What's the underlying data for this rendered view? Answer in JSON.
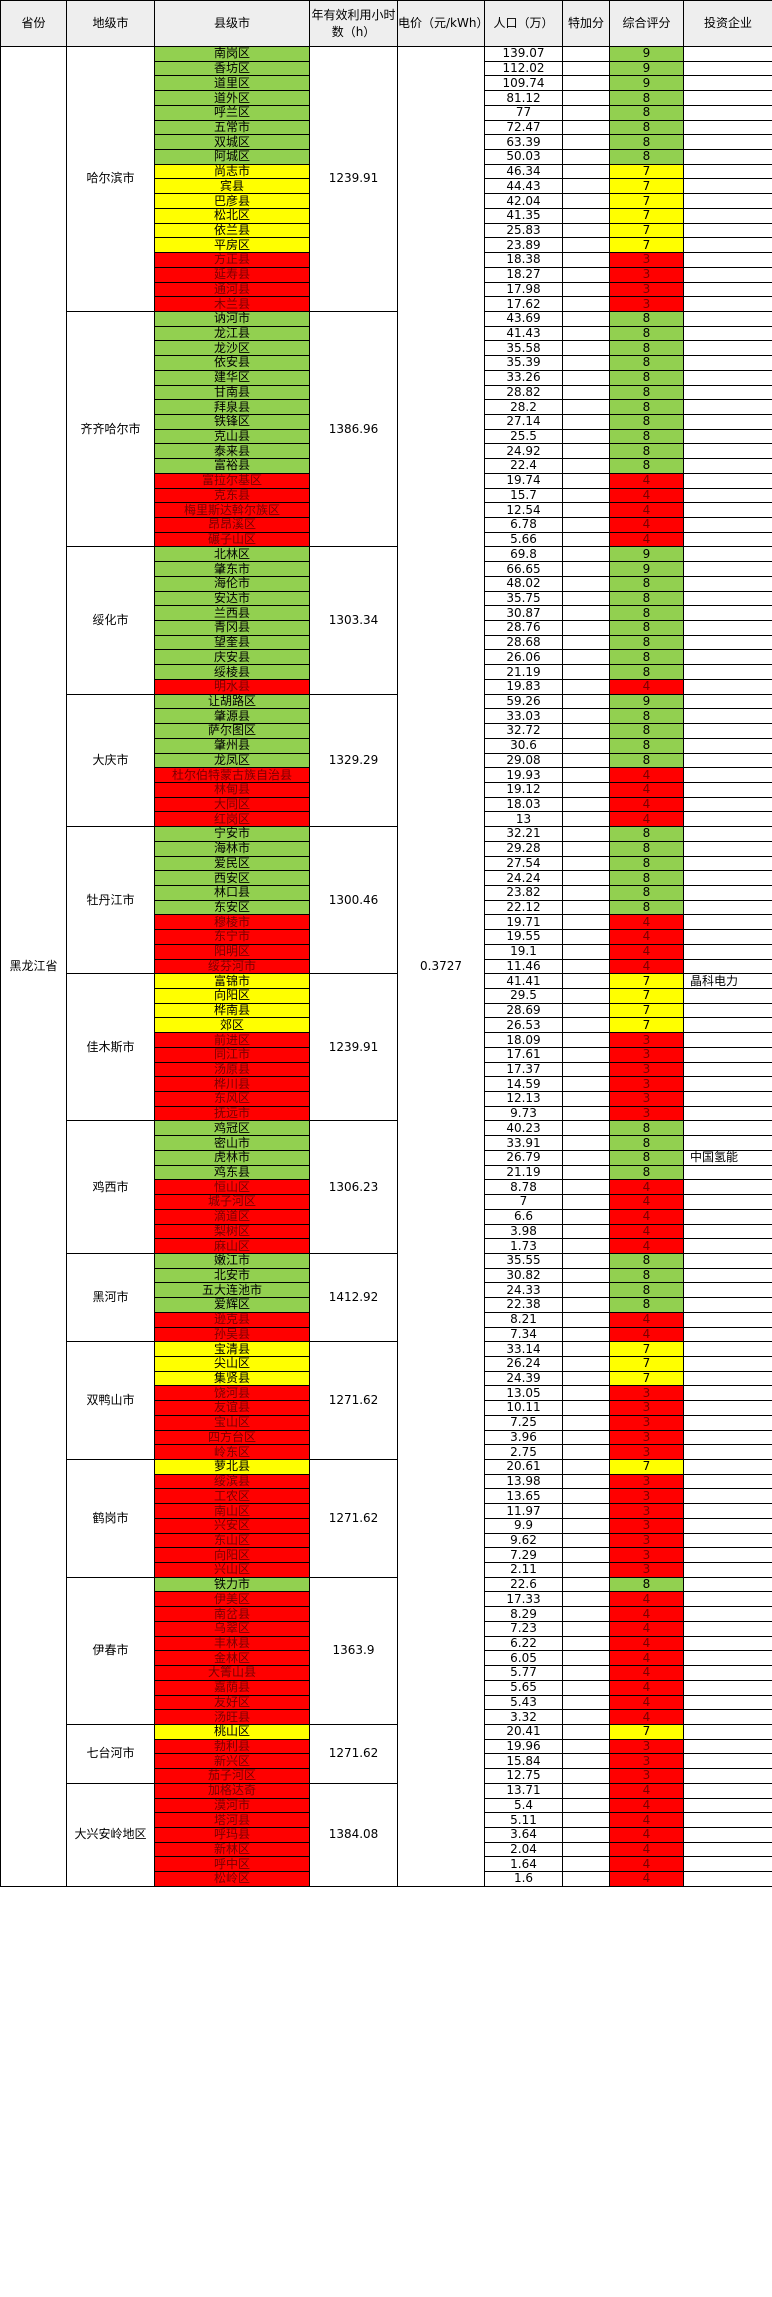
{
  "headers": {
    "province": "省份",
    "city": "地级市",
    "county": "县级市",
    "hours": "年有效利用小时数（h）",
    "price": "电价（元/kWh）",
    "population": "人口（万）",
    "bonus": "特加分",
    "score": "综合评分",
    "investor": "投资企业"
  },
  "province": "黑龙江省",
  "price": "0.3727",
  "color_codes": {
    "g": "#92d050",
    "y": "#ffff00",
    "r": "#ff0000"
  },
  "cities": [
    {
      "name": "哈尔滨市",
      "hours": "1239.91",
      "rows": [
        {
          "county": "南岗区",
          "pop": "139.07",
          "score": "9",
          "color": "g",
          "investor": ""
        },
        {
          "county": "香坊区",
          "pop": "112.02",
          "score": "9",
          "color": "g",
          "investor": ""
        },
        {
          "county": "道里区",
          "pop": "109.74",
          "score": "9",
          "color": "g",
          "investor": ""
        },
        {
          "county": "道外区",
          "pop": "81.12",
          "score": "8",
          "color": "g",
          "investor": ""
        },
        {
          "county": "呼兰区",
          "pop": "77",
          "score": "8",
          "color": "g",
          "investor": ""
        },
        {
          "county": "五常市",
          "pop": "72.47",
          "score": "8",
          "color": "g",
          "investor": ""
        },
        {
          "county": "双城区",
          "pop": "63.39",
          "score": "8",
          "color": "g",
          "investor": ""
        },
        {
          "county": "阿城区",
          "pop": "50.03",
          "score": "8",
          "color": "g",
          "investor": ""
        },
        {
          "county": "尚志市",
          "pop": "46.34",
          "score": "7",
          "color": "y",
          "investor": ""
        },
        {
          "county": "宾县",
          "pop": "44.43",
          "score": "7",
          "color": "y",
          "investor": ""
        },
        {
          "county": "巴彦县",
          "pop": "42.04",
          "score": "7",
          "color": "y",
          "investor": ""
        },
        {
          "county": "松北区",
          "pop": "41.35",
          "score": "7",
          "color": "y",
          "investor": ""
        },
        {
          "county": "依兰县",
          "pop": "25.83",
          "score": "7",
          "color": "y",
          "investor": ""
        },
        {
          "county": "平房区",
          "pop": "23.89",
          "score": "7",
          "color": "y",
          "investor": ""
        },
        {
          "county": "方正县",
          "pop": "18.38",
          "score": "3",
          "color": "r",
          "investor": ""
        },
        {
          "county": "延寿县",
          "pop": "18.27",
          "score": "3",
          "color": "r",
          "investor": ""
        },
        {
          "county": "通河县",
          "pop": "17.98",
          "score": "3",
          "color": "r",
          "investor": ""
        },
        {
          "county": "木兰县",
          "pop": "17.62",
          "score": "3",
          "color": "r",
          "investor": ""
        }
      ]
    },
    {
      "name": "齐齐哈尔市",
      "hours": "1386.96",
      "rows": [
        {
          "county": "讷河市",
          "pop": "43.69",
          "score": "8",
          "color": "g",
          "investor": ""
        },
        {
          "county": "龙江县",
          "pop": "41.43",
          "score": "8",
          "color": "g",
          "investor": ""
        },
        {
          "county": "龙沙区",
          "pop": "35.58",
          "score": "8",
          "color": "g",
          "investor": ""
        },
        {
          "county": "依安县",
          "pop": "35.39",
          "score": "8",
          "color": "g",
          "investor": ""
        },
        {
          "county": "建华区",
          "pop": "33.26",
          "score": "8",
          "color": "g",
          "investor": ""
        },
        {
          "county": "甘南县",
          "pop": "28.82",
          "score": "8",
          "color": "g",
          "investor": ""
        },
        {
          "county": "拜泉县",
          "pop": "28.2",
          "score": "8",
          "color": "g",
          "investor": ""
        },
        {
          "county": "铁锋区",
          "pop": "27.14",
          "score": "8",
          "color": "g",
          "investor": ""
        },
        {
          "county": "克山县",
          "pop": "25.5",
          "score": "8",
          "color": "g",
          "investor": ""
        },
        {
          "county": "泰来县",
          "pop": "24.92",
          "score": "8",
          "color": "g",
          "investor": ""
        },
        {
          "county": "富裕县",
          "pop": "22.4",
          "score": "8",
          "color": "g",
          "investor": ""
        },
        {
          "county": "富拉尔基区",
          "pop": "19.74",
          "score": "4",
          "color": "r",
          "investor": ""
        },
        {
          "county": "克东县",
          "pop": "15.7",
          "score": "4",
          "color": "r",
          "investor": ""
        },
        {
          "county": "梅里斯达斡尔族区",
          "pop": "12.54",
          "score": "4",
          "color": "r",
          "investor": ""
        },
        {
          "county": "昂昂溪区",
          "pop": "6.78",
          "score": "4",
          "color": "r",
          "investor": ""
        },
        {
          "county": "碾子山区",
          "pop": "5.66",
          "score": "4",
          "color": "r",
          "investor": ""
        }
      ]
    },
    {
      "name": "绥化市",
      "hours": "1303.34",
      "rows": [
        {
          "county": "北林区",
          "pop": "69.8",
          "score": "9",
          "color": "g",
          "investor": ""
        },
        {
          "county": "肇东市",
          "pop": "66.65",
          "score": "9",
          "color": "g",
          "investor": ""
        },
        {
          "county": "海伦市",
          "pop": "48.02",
          "score": "8",
          "color": "g",
          "investor": ""
        },
        {
          "county": "安达市",
          "pop": "35.75",
          "score": "8",
          "color": "g",
          "investor": ""
        },
        {
          "county": "兰西县",
          "pop": "30.87",
          "score": "8",
          "color": "g",
          "investor": ""
        },
        {
          "county": "青冈县",
          "pop": "28.76",
          "score": "8",
          "color": "g",
          "investor": ""
        },
        {
          "county": "望奎县",
          "pop": "28.68",
          "score": "8",
          "color": "g",
          "investor": ""
        },
        {
          "county": "庆安县",
          "pop": "26.06",
          "score": "8",
          "color": "g",
          "investor": ""
        },
        {
          "county": "绥棱县",
          "pop": "21.19",
          "score": "8",
          "color": "g",
          "investor": ""
        },
        {
          "county": "明水县",
          "pop": "19.83",
          "score": "4",
          "color": "r",
          "investor": ""
        }
      ]
    },
    {
      "name": "大庆市",
      "hours": "1329.29",
      "rows": [
        {
          "county": "让胡路区",
          "pop": "59.26",
          "score": "9",
          "color": "g",
          "investor": ""
        },
        {
          "county": "肇源县",
          "pop": "33.03",
          "score": "8",
          "color": "g",
          "investor": ""
        },
        {
          "county": "萨尔图区",
          "pop": "32.72",
          "score": "8",
          "color": "g",
          "investor": ""
        },
        {
          "county": "肇州县",
          "pop": "30.6",
          "score": "8",
          "color": "g",
          "investor": ""
        },
        {
          "county": "龙凤区",
          "pop": "29.08",
          "score": "8",
          "color": "g",
          "investor": ""
        },
        {
          "county": "杜尔伯特蒙古族自治县",
          "pop": "19.93",
          "score": "4",
          "color": "r",
          "investor": ""
        },
        {
          "county": "林甸县",
          "pop": "19.12",
          "score": "4",
          "color": "r",
          "investor": ""
        },
        {
          "county": "大同区",
          "pop": "18.03",
          "score": "4",
          "color": "r",
          "investor": ""
        },
        {
          "county": "红岗区",
          "pop": "13",
          "score": "4",
          "color": "r",
          "investor": ""
        }
      ]
    },
    {
      "name": "牡丹江市",
      "hours": "1300.46",
      "rows": [
        {
          "county": "宁安市",
          "pop": "32.21",
          "score": "8",
          "color": "g",
          "investor": ""
        },
        {
          "county": "海林市",
          "pop": "29.28",
          "score": "8",
          "color": "g",
          "investor": ""
        },
        {
          "county": "爱民区",
          "pop": "27.54",
          "score": "8",
          "color": "g",
          "investor": ""
        },
        {
          "county": "西安区",
          "pop": "24.24",
          "score": "8",
          "color": "g",
          "investor": ""
        },
        {
          "county": "林口县",
          "pop": "23.82",
          "score": "8",
          "color": "g",
          "investor": ""
        },
        {
          "county": "东安区",
          "pop": "22.12",
          "score": "8",
          "color": "g",
          "investor": ""
        },
        {
          "county": "穆棱市",
          "pop": "19.71",
          "score": "4",
          "color": "r",
          "investor": ""
        },
        {
          "county": "东宁市",
          "pop": "19.55",
          "score": "4",
          "color": "r",
          "investor": ""
        },
        {
          "county": "阳明区",
          "pop": "19.1",
          "score": "4",
          "color": "r",
          "investor": ""
        },
        {
          "county": "绥芬河市",
          "pop": "11.46",
          "score": "4",
          "color": "r",
          "investor": ""
        }
      ]
    },
    {
      "name": "佳木斯市",
      "hours": "1239.91",
      "rows": [
        {
          "county": "富锦市",
          "pop": "41.41",
          "score": "7",
          "color": "y",
          "investor": "晶科电力"
        },
        {
          "county": "向阳区",
          "pop": "29.5",
          "score": "7",
          "color": "y",
          "investor": ""
        },
        {
          "county": "桦南县",
          "pop": "28.69",
          "score": "7",
          "color": "y",
          "investor": ""
        },
        {
          "county": "郊区",
          "pop": "26.53",
          "score": "7",
          "color": "y",
          "investor": ""
        },
        {
          "county": "前进区",
          "pop": "18.09",
          "score": "3",
          "color": "r",
          "investor": ""
        },
        {
          "county": "同江市",
          "pop": "17.61",
          "score": "3",
          "color": "r",
          "investor": ""
        },
        {
          "county": "汤原县",
          "pop": "17.37",
          "score": "3",
          "color": "r",
          "investor": ""
        },
        {
          "county": "桦川县",
          "pop": "14.59",
          "score": "3",
          "color": "r",
          "investor": ""
        },
        {
          "county": "东风区",
          "pop": "12.13",
          "score": "3",
          "color": "r",
          "investor": ""
        },
        {
          "county": "抚远市",
          "pop": "9.73",
          "score": "3",
          "color": "r",
          "investor": ""
        }
      ]
    },
    {
      "name": "鸡西市",
      "hours": "1306.23",
      "rows": [
        {
          "county": "鸡冠区",
          "pop": "40.23",
          "score": "8",
          "color": "g",
          "investor": ""
        },
        {
          "county": "密山市",
          "pop": "33.91",
          "score": "8",
          "color": "g",
          "investor": ""
        },
        {
          "county": "虎林市",
          "pop": "26.79",
          "score": "8",
          "color": "g",
          "investor": "中国氢能"
        },
        {
          "county": "鸡东县",
          "pop": "21.19",
          "score": "8",
          "color": "g",
          "investor": ""
        },
        {
          "county": "恒山区",
          "pop": "8.78",
          "score": "4",
          "color": "r",
          "investor": ""
        },
        {
          "county": "城子河区",
          "pop": "7",
          "score": "4",
          "color": "r",
          "investor": ""
        },
        {
          "county": "滴道区",
          "pop": "6.6",
          "score": "4",
          "color": "r",
          "investor": ""
        },
        {
          "county": "梨树区",
          "pop": "3.98",
          "score": "4",
          "color": "r",
          "investor": ""
        },
        {
          "county": "麻山区",
          "pop": "1.73",
          "score": "4",
          "color": "r",
          "investor": ""
        }
      ]
    },
    {
      "name": "黑河市",
      "hours": "1412.92",
      "rows": [
        {
          "county": "嫩江市",
          "pop": "35.55",
          "score": "8",
          "color": "g",
          "investor": ""
        },
        {
          "county": "北安市",
          "pop": "30.82",
          "score": "8",
          "color": "g",
          "investor": ""
        },
        {
          "county": "五大连池市",
          "pop": "24.33",
          "score": "8",
          "color": "g",
          "investor": ""
        },
        {
          "county": "爱辉区",
          "pop": "22.38",
          "score": "8",
          "color": "g",
          "investor": ""
        },
        {
          "county": "逊克县",
          "pop": "8.21",
          "score": "4",
          "color": "r",
          "investor": ""
        },
        {
          "county": "孙吴县",
          "pop": "7.34",
          "score": "4",
          "color": "r",
          "investor": ""
        }
      ]
    },
    {
      "name": "双鸭山市",
      "hours": "1271.62",
      "rows": [
        {
          "county": "宝清县",
          "pop": "33.14",
          "score": "7",
          "color": "y",
          "investor": ""
        },
        {
          "county": "尖山区",
          "pop": "26.24",
          "score": "7",
          "color": "y",
          "investor": ""
        },
        {
          "county": "集贤县",
          "pop": "24.39",
          "score": "7",
          "color": "y",
          "investor": ""
        },
        {
          "county": "饶河县",
          "pop": "13.05",
          "score": "3",
          "color": "r",
          "investor": ""
        },
        {
          "county": "友谊县",
          "pop": "10.11",
          "score": "3",
          "color": "r",
          "investor": ""
        },
        {
          "county": "宝山区",
          "pop": "7.25",
          "score": "3",
          "color": "r",
          "investor": ""
        },
        {
          "county": "四方台区",
          "pop": "3.96",
          "score": "3",
          "color": "r",
          "investor": ""
        },
        {
          "county": "岭东区",
          "pop": "2.75",
          "score": "3",
          "color": "r",
          "investor": ""
        }
      ]
    },
    {
      "name": "鹤岗市",
      "hours": "1271.62",
      "rows": [
        {
          "county": "萝北县",
          "pop": "20.61",
          "score": "7",
          "color": "y",
          "investor": ""
        },
        {
          "county": "绥滨县",
          "pop": "13.98",
          "score": "3",
          "color": "r",
          "investor": ""
        },
        {
          "county": "工农区",
          "pop": "13.65",
          "score": "3",
          "color": "r",
          "investor": ""
        },
        {
          "county": "南山区",
          "pop": "11.97",
          "score": "3",
          "color": "r",
          "investor": ""
        },
        {
          "county": "兴安区",
          "pop": "9.9",
          "score": "3",
          "color": "r",
          "investor": ""
        },
        {
          "county": "东山区",
          "pop": "9.62",
          "score": "3",
          "color": "r",
          "investor": ""
        },
        {
          "county": "向阳区",
          "pop": "7.29",
          "score": "3",
          "color": "r",
          "investor": ""
        },
        {
          "county": "兴山区",
          "pop": "2.11",
          "score": "3",
          "color": "r",
          "investor": ""
        }
      ]
    },
    {
      "name": "伊春市",
      "hours": "1363.9",
      "rows": [
        {
          "county": "铁力市",
          "pop": "22.6",
          "score": "8",
          "color": "g",
          "investor": ""
        },
        {
          "county": "伊美区",
          "pop": "17.33",
          "score": "4",
          "color": "r",
          "investor": ""
        },
        {
          "county": "南岔县",
          "pop": "8.29",
          "score": "4",
          "color": "r",
          "investor": ""
        },
        {
          "county": "乌翠区",
          "pop": "7.23",
          "score": "4",
          "color": "r",
          "investor": ""
        },
        {
          "county": "丰林县",
          "pop": "6.22",
          "score": "4",
          "color": "r",
          "investor": ""
        },
        {
          "county": "金林区",
          "pop": "6.05",
          "score": "4",
          "color": "r",
          "investor": ""
        },
        {
          "county": "大箐山县",
          "pop": "5.77",
          "score": "4",
          "color": "r",
          "investor": ""
        },
        {
          "county": "嘉荫县",
          "pop": "5.65",
          "score": "4",
          "color": "r",
          "investor": ""
        },
        {
          "county": "友好区",
          "pop": "5.43",
          "score": "4",
          "color": "r",
          "investor": ""
        },
        {
          "county": "汤旺县",
          "pop": "3.32",
          "score": "4",
          "color": "r",
          "investor": ""
        }
      ]
    },
    {
      "name": "七台河市",
      "hours": "1271.62",
      "rows": [
        {
          "county": "桃山区",
          "pop": "20.41",
          "score": "7",
          "color": "y",
          "investor": ""
        },
        {
          "county": "勃利县",
          "pop": "19.96",
          "score": "3",
          "color": "r",
          "investor": ""
        },
        {
          "county": "新兴区",
          "pop": "15.84",
          "score": "3",
          "color": "r",
          "investor": ""
        },
        {
          "county": "茄子河区",
          "pop": "12.75",
          "score": "3",
          "color": "r",
          "investor": ""
        }
      ]
    },
    {
      "name": "大兴安岭地区",
      "hours": "1384.08",
      "rows": [
        {
          "county": "加格达奇",
          "pop": "13.71",
          "score": "4",
          "color": "r",
          "investor": ""
        },
        {
          "county": "漠河市",
          "pop": "5.4",
          "score": "4",
          "color": "r",
          "investor": ""
        },
        {
          "county": "塔河县",
          "pop": "5.11",
          "score": "4",
          "color": "r",
          "investor": ""
        },
        {
          "county": "呼玛县",
          "pop": "3.64",
          "score": "4",
          "color": "r",
          "investor": ""
        },
        {
          "county": "新林区",
          "pop": "2.04",
          "score": "4",
          "color": "r",
          "investor": ""
        },
        {
          "county": "呼中区",
          "pop": "1.64",
          "score": "4",
          "color": "r",
          "investor": ""
        },
        {
          "county": "松岭区",
          "pop": "1.6",
          "score": "4",
          "color": "r",
          "investor": ""
        }
      ]
    }
  ]
}
